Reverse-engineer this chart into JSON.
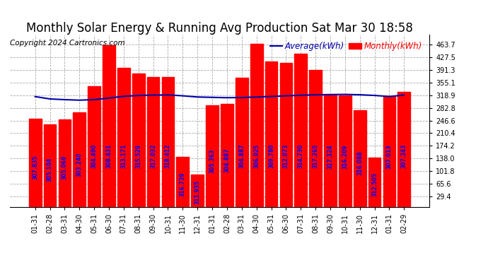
{
  "title": "Monthly Solar Energy & Running Avg Production Sat Mar 30 18:58",
  "copyright": "Copyright 2024 Cartronics.com",
  "categories": [
    "01-31",
    "02-28",
    "03-31",
    "04-30",
    "05-31",
    "06-30",
    "07-31",
    "08-31",
    "09-30",
    "10-31",
    "11-30",
    "12-31",
    "01-31",
    "02-28",
    "03-31",
    "04-30",
    "05-31",
    "06-30",
    "07-31",
    "08-31",
    "09-30",
    "10-31",
    "11-30",
    "12-31",
    "01-31",
    "02-29"
  ],
  "monthly_values": [
    251.8,
    235.1,
    250.6,
    269.1,
    344.9,
    463.1,
    398.1,
    381.5,
    371.7,
    371.2,
    142.5,
    91.44,
    289.6,
    295.3,
    369.0,
    466.0,
    415.7,
    412.0,
    437.0,
    392.0,
    320.0,
    317.7,
    275.9,
    140.0,
    316.2,
    328.0
  ],
  "bar_labels": [
    "307.835",
    "305.104",
    "305.069",
    "303.240",
    "304.490",
    "308.431",
    "313.171",
    "315.529",
    "317.032",
    "318.412",
    "316.739",
    "311.935",
    "305.363",
    "304.887",
    "304.887",
    "306.025",
    "309.780",
    "312.073",
    "314.730",
    "317.265",
    "317.324",
    "316.209",
    "316.088",
    "312.505",
    "307.013",
    "307.343"
  ],
  "avg_values": [
    315.2,
    308.5,
    306.5,
    305.0,
    306.5,
    311.0,
    316.0,
    318.5,
    319.5,
    320.0,
    317.5,
    314.0,
    313.0,
    312.0,
    312.5,
    314.0,
    315.5,
    317.5,
    319.0,
    320.5,
    321.0,
    321.5,
    320.5,
    318.5,
    315.5,
    319.5
  ],
  "bar_color": "#ff0000",
  "avg_line_color": "#0000aa",
  "title_color": "#000000",
  "copyright_color": "#000000",
  "legend_avg_color": "#0000aa",
  "legend_monthly_color": "#ff0000",
  "bar_label_color": "#0000ff",
  "ylim_max": 493.1,
  "ytick_values": [
    29.4,
    65.6,
    101.8,
    138.0,
    174.2,
    210.4,
    246.6,
    282.8,
    318.9,
    355.1,
    391.3,
    427.5,
    463.7
  ],
  "background_color": "#ffffff",
  "grid_color": "#aaaaaa",
  "title_fontsize": 12,
  "copyright_fontsize": 7.5,
  "tick_fontsize": 7,
  "bar_label_fontsize": 5.5,
  "legend_fontsize": 8.5
}
